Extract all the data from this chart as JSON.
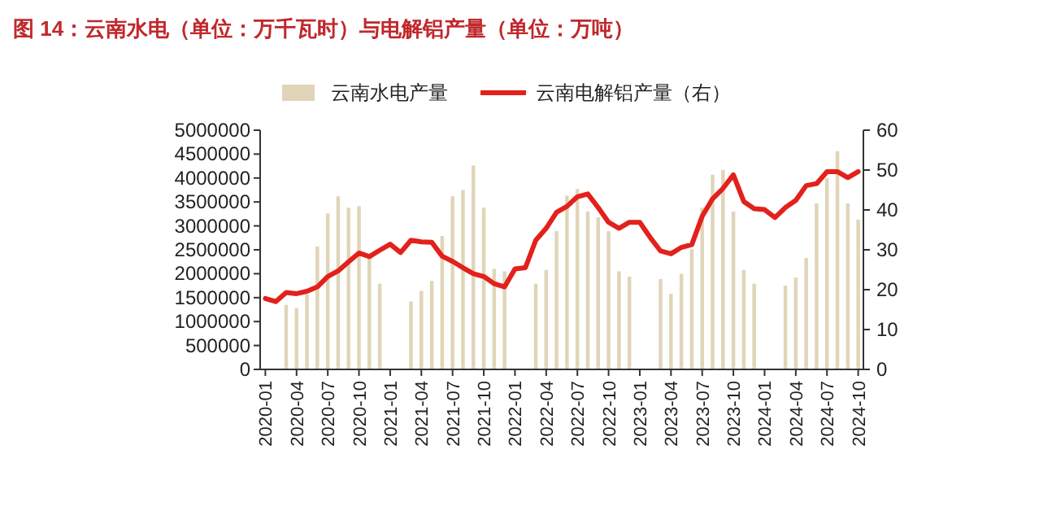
{
  "chart_data": {
    "type": "bar",
    "title": "图 14：云南水电（单位：万千瓦时）与电解铝产量（单位：万吨）",
    "categories": [
      "2020-01",
      null,
      null,
      "2020-04",
      null,
      null,
      "2020-07",
      null,
      null,
      "2020-10",
      null,
      null,
      "2021-01",
      null,
      null,
      "2021-04",
      null,
      null,
      "2021-07",
      null,
      null,
      "2021-10",
      null,
      null,
      "2022-01",
      null,
      null,
      "2022-04",
      null,
      null,
      "2022-07",
      null,
      null,
      "2022-10",
      null,
      null,
      "2023-01",
      null,
      null,
      "2023-04",
      null,
      null,
      "2023-07",
      null,
      null,
      "2023-10",
      null,
      null,
      "2024-01",
      null,
      null,
      "2024-04",
      null,
      null,
      "2024-07",
      null,
      null,
      "2024-10"
    ],
    "series": [
      {
        "name": "云南水电产量",
        "color": "#e0d5b8",
        "values": [
          null,
          null,
          1350000,
          1280000,
          1570000,
          2570000,
          3260000,
          3620000,
          3380000,
          3410000,
          2330000,
          1790000,
          null,
          null,
          1420000,
          1640000,
          1850000,
          2790000,
          3620000,
          3750000,
          4260000,
          3380000,
          2100000,
          2050000,
          null,
          null,
          1790000,
          2080000,
          2890000,
          3630000,
          3770000,
          3300000,
          3180000,
          2890000,
          2050000,
          1940000,
          null,
          null,
          1890000,
          1580000,
          2000000,
          2510000,
          3380000,
          4070000,
          4170000,
          3300000,
          2080000,
          1790000,
          null,
          null,
          1750000,
          1920000,
          2330000,
          3470000,
          4000000,
          4560000,
          3470000,
          3130000
        ]
      },
      {
        "name": "云南电解铝产量（右）",
        "type": "line",
        "axis": "y2",
        "color": "#e3211c",
        "values": [
          17.8,
          17.0,
          19.3,
          19.0,
          19.6,
          20.7,
          23.3,
          24.7,
          27.0,
          29.2,
          28.3,
          29.9,
          31.4,
          29.3,
          32.4,
          32.0,
          31.9,
          28.4,
          27.1,
          25.5,
          24.0,
          23.3,
          21.5,
          20.7,
          25.2,
          25.5,
          32.4,
          35.4,
          39.4,
          40.9,
          43.3,
          44.0,
          40.6,
          36.9,
          35.4,
          36.9,
          36.9,
          33.1,
          29.7,
          29.0,
          30.6,
          31.3,
          38.4,
          42.8,
          45.4,
          48.8,
          42.1,
          40.3,
          40.1,
          38.1,
          40.6,
          42.4,
          46.1,
          46.6,
          49.6,
          49.6,
          48.1,
          49.6
        ]
      }
    ],
    "ylim": [
      0,
      5000000
    ],
    "yticks": [
      0,
      500000,
      1000000,
      1500000,
      2000000,
      2500000,
      3000000,
      3500000,
      4000000,
      4500000,
      5000000
    ],
    "y2lim": [
      0,
      60
    ],
    "y2ticks": [
      0,
      10,
      20,
      30,
      40,
      50,
      60
    ],
    "legend": "top",
    "grid": false
  }
}
